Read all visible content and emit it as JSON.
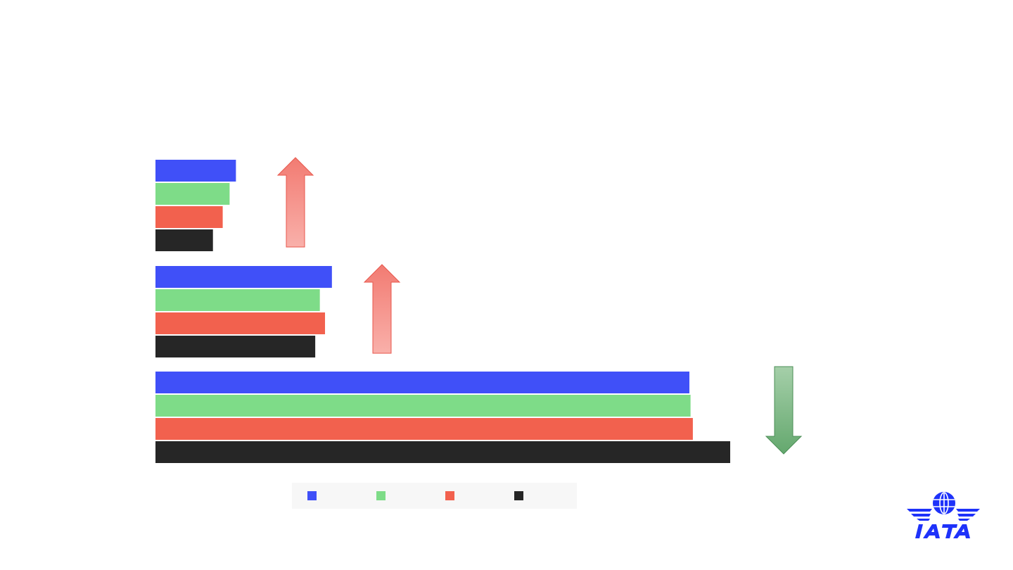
{
  "chart_data": {
    "type": "bar",
    "orientation": "horizontal",
    "title": "",
    "xlabel": "",
    "ylabel": "",
    "grid": false,
    "legend_position": "bottom",
    "xlim": [
      0,
      100
    ],
    "categories": [
      "",
      "",
      ""
    ],
    "series": [
      {
        "color": "#4050f8",
        "values": [
          14.0,
          30.7,
          92.9
        ]
      },
      {
        "color": "#7edc88",
        "values": [
          12.9,
          28.6,
          93.1
        ]
      },
      {
        "color": "#f2614e",
        "values": [
          11.7,
          29.5,
          93.5
        ]
      },
      {
        "color": "#262626",
        "values": [
          10.0,
          27.8,
          100.0
        ]
      }
    ],
    "trend_arrows": [
      "up",
      "up",
      "down"
    ],
    "colors": {
      "arrow_up": "#f48a82",
      "arrow_down": "#6fae78",
      "logo": "#1e32fa"
    }
  },
  "logo": {
    "text": "IATA"
  }
}
